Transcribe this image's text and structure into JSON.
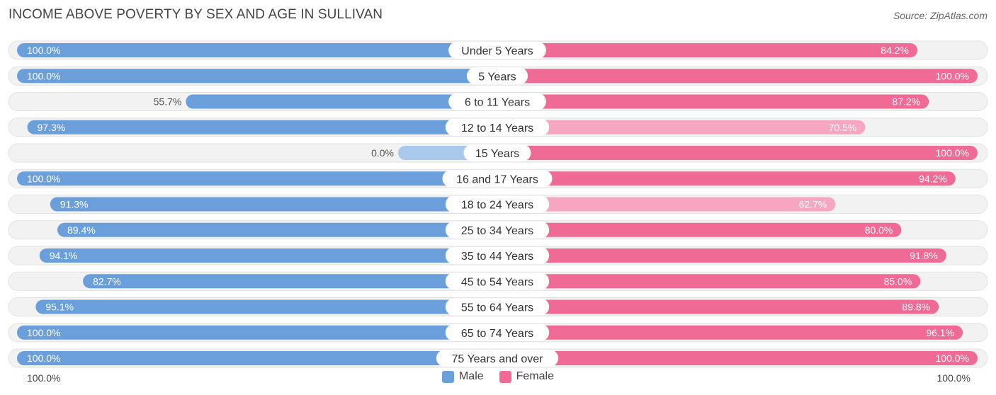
{
  "title": "INCOME ABOVE POVERTY BY SEX AND AGE IN SULLIVAN",
  "source": "Source: ZipAtlas.com",
  "colors": {
    "male_strong": "#6a9fdc",
    "male_light": "#a9c9ec",
    "female_strong": "#f06a96",
    "female_light": "#f7a6c2",
    "track": "#efefef"
  },
  "legend": {
    "male": "Male",
    "female": "Female"
  },
  "axis": {
    "left_label": "100.0%",
    "right_label": "100.0%"
  },
  "chart_data": {
    "type": "bar",
    "orientation": "horizontal-diverging",
    "categories": [
      "Under 5 Years",
      "5 Years",
      "6 to 11 Years",
      "12 to 14 Years",
      "15 Years",
      "16 and 17 Years",
      "18 to 24 Years",
      "25 to 34 Years",
      "35 to 44 Years",
      "45 to 54 Years",
      "55 to 64 Years",
      "65 to 74 Years",
      "75 Years and over"
    ],
    "series": [
      {
        "name": "Male",
        "values": [
          100.0,
          100.0,
          55.7,
          97.3,
          0.0,
          100.0,
          91.3,
          89.4,
          94.1,
          82.7,
          95.1,
          100.0,
          100.0
        ],
        "labels": [
          "100.0%",
          "100.0%",
          "55.7%",
          "97.3%",
          "0.0%",
          "100.0%",
          "91.3%",
          "89.4%",
          "94.1%",
          "82.7%",
          "95.1%",
          "100.0%",
          "100.0%"
        ]
      },
      {
        "name": "Female",
        "values": [
          84.2,
          100.0,
          87.2,
          70.5,
          100.0,
          94.2,
          62.7,
          80.0,
          91.8,
          85.0,
          89.8,
          96.1,
          100.0
        ],
        "labels": [
          "84.2%",
          "100.0%",
          "87.2%",
          "70.5%",
          "100.0%",
          "94.2%",
          "62.7%",
          "80.0%",
          "91.8%",
          "85.0%",
          "89.8%",
          "96.1%",
          "100.0%"
        ]
      }
    ],
    "xlim": [
      0,
      100
    ],
    "legend_position": "bottom-center"
  }
}
